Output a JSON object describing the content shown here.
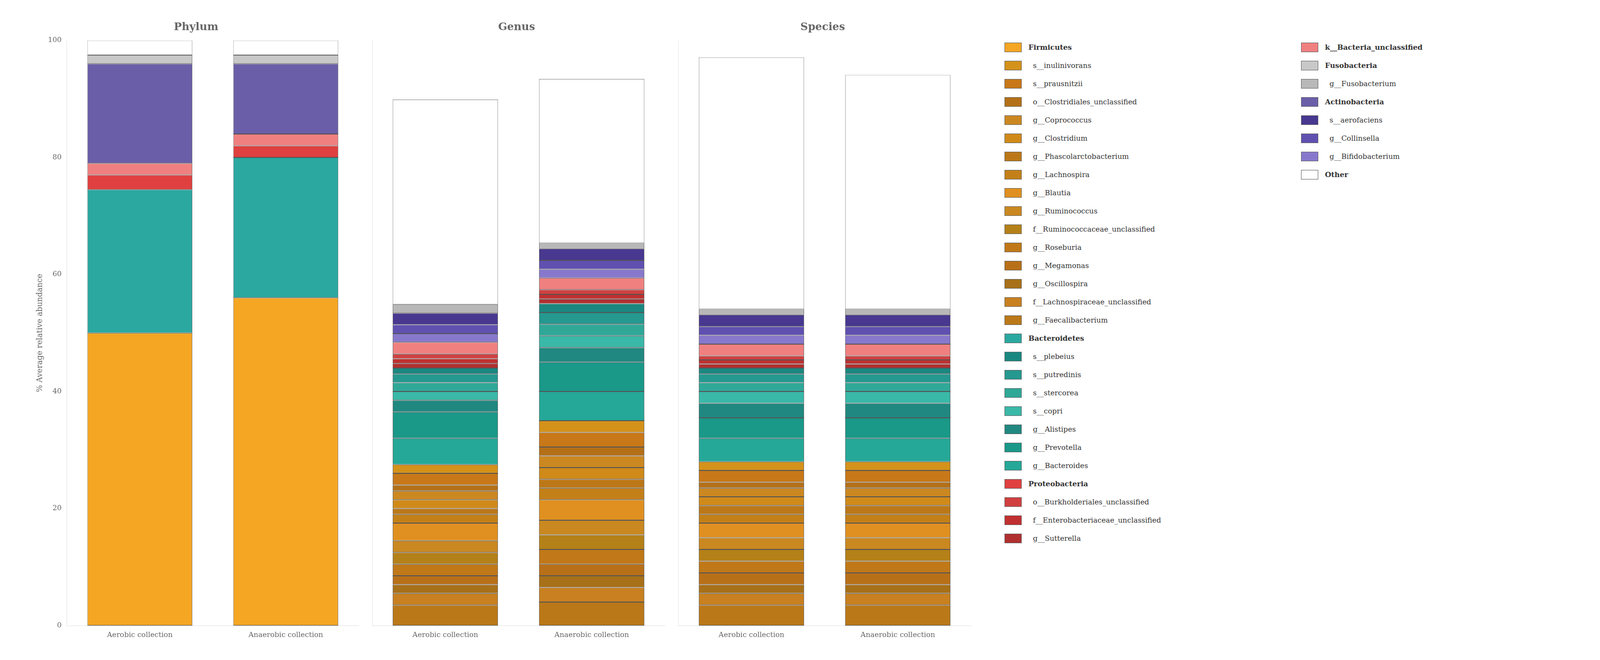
{
  "chart_data": [
    {
      "type": "bar",
      "title": "Phylum",
      "categories": [
        "Aerobic collection",
        "Anaerobic collection"
      ],
      "ylabel": "% Average relative abundance",
      "stacked": true,
      "grid": false,
      "ylim": [
        0,
        100
      ],
      "yticks": [
        0,
        20,
        40,
        60,
        80,
        100
      ],
      "series": [
        {
          "color": "#F5A623",
          "values": [
            50.0,
            56.0
          ]
        },
        {
          "color": "#2BA8A0",
          "values": [
            24.5,
            24.0
          ]
        },
        {
          "color": "#E04040",
          "values": [
            2.5,
            2.0
          ]
        },
        {
          "color": "#F08080",
          "values": [
            2.0,
            2.0
          ]
        },
        {
          "color": "#6B5EA8",
          "values": [
            17.0,
            12.0
          ]
        },
        {
          "color": "#C8C8C8",
          "values": [
            1.5,
            1.5
          ]
        },
        {
          "color": "#FFFFFF",
          "values": [
            2.5,
            2.5
          ]
        }
      ]
    },
    {
      "type": "bar",
      "title": "Genus",
      "categories": [
        "Aerobic collection",
        "Anaerobic collection"
      ],
      "stacked": true,
      "grid": false,
      "tick_labels": "x",
      "ylim": [
        0,
        100
      ],
      "series": [
        {
          "color": "#BA7818",
          "values": [
            3.5,
            4.0
          ]
        },
        {
          "color": "#C88020",
          "values": [
            2.0,
            2.5
          ]
        },
        {
          "color": "#A87018",
          "values": [
            1.5,
            2.0
          ]
        },
        {
          "color": "#B87018",
          "values": [
            1.5,
            2.0
          ]
        },
        {
          "color": "#C07818",
          "values": [
            2.0,
            2.5
          ]
        },
        {
          "color": "#B48018",
          "values": [
            2.0,
            2.5
          ]
        },
        {
          "color": "#CA8820",
          "values": [
            2.0,
            2.5
          ]
        },
        {
          "color": "#E09020",
          "values": [
            3.0,
            3.5
          ]
        },
        {
          "color": "#C48018",
          "values": [
            1.5,
            2.0
          ]
        },
        {
          "color": "#BC7818",
          "values": [
            1.0,
            1.5
          ]
        },
        {
          "color": "#D08A1A",
          "values": [
            1.5,
            2.0
          ]
        },
        {
          "color": "#CC8820",
          "values": [
            1.5,
            2.0
          ]
        },
        {
          "color": "#B47018",
          "values": [
            1.0,
            1.5
          ]
        },
        {
          "color": "#C87818",
          "values": [
            2.0,
            2.5
          ]
        },
        {
          "color": "#D4921A",
          "values": [
            1.5,
            2.0
          ]
        },
        {
          "color": "#25A898",
          "values": [
            4.5,
            5.0
          ]
        },
        {
          "color": "#1A9888",
          "values": [
            4.5,
            5.0
          ]
        },
        {
          "color": "#208880",
          "values": [
            2.0,
            2.5
          ]
        },
        {
          "color": "#3AB8A8",
          "values": [
            1.5,
            2.0
          ]
        },
        {
          "color": "#30A898",
          "values": [
            1.5,
            2.0
          ]
        },
        {
          "color": "#259890",
          "values": [
            1.5,
            2.0
          ]
        },
        {
          "color": "#1A8880",
          "values": [
            1.0,
            1.5
          ]
        },
        {
          "color": "#B03030",
          "values": [
            0.8,
            0.8
          ]
        },
        {
          "color": "#C03030",
          "values": [
            0.8,
            0.8
          ]
        },
        {
          "color": "#D04040",
          "values": [
            0.8,
            0.8
          ]
        },
        {
          "color": "#F08080",
          "values": [
            2.0,
            2.0
          ]
        },
        {
          "color": "#8878CC",
          "values": [
            1.5,
            1.5
          ]
        },
        {
          "color": "#6050B0",
          "values": [
            1.5,
            1.5
          ]
        },
        {
          "color": "#483890",
          "values": [
            2.0,
            2.0
          ]
        },
        {
          "color": "#B8B8B8",
          "values": [
            1.5,
            1.0
          ]
        },
        {
          "color": "#FFFFFF",
          "values": [
            35.0,
            28.0
          ]
        }
      ]
    },
    {
      "type": "bar",
      "title": "Species",
      "categories": [
        "Aerobic collection",
        "Anaerobic collection"
      ],
      "stacked": true,
      "grid": false,
      "tick_labels": "x",
      "ylim": [
        0,
        100
      ],
      "legend": "right",
      "series": [
        {
          "color": "#BA7818",
          "values": [
            3.5,
            3.5
          ]
        },
        {
          "color": "#C88020",
          "values": [
            2.0,
            2.0
          ]
        },
        {
          "color": "#A87018",
          "values": [
            1.5,
            1.5
          ]
        },
        {
          "color": "#B87018",
          "values": [
            2.0,
            2.0
          ]
        },
        {
          "color": "#C07818",
          "values": [
            2.0,
            2.0
          ]
        },
        {
          "color": "#B48018",
          "values": [
            2.0,
            2.0
          ]
        },
        {
          "color": "#CA8820",
          "values": [
            2.0,
            2.0
          ]
        },
        {
          "color": "#E09020",
          "values": [
            2.5,
            2.5
          ]
        },
        {
          "color": "#C48018",
          "values": [
            1.5,
            1.5
          ]
        },
        {
          "color": "#BC7818",
          "values": [
            1.5,
            1.5
          ]
        },
        {
          "color": "#D08A1A",
          "values": [
            1.5,
            1.5
          ]
        },
        {
          "color": "#CC8820",
          "values": [
            1.5,
            1.5
          ]
        },
        {
          "color": "#B47018",
          "values": [
            1.0,
            1.0
          ]
        },
        {
          "color": "#C87818",
          "values": [
            2.0,
            2.0
          ]
        },
        {
          "color": "#D4921A",
          "values": [
            1.5,
            1.5
          ]
        },
        {
          "color": "#25A898",
          "values": [
            4.0,
            4.0
          ]
        },
        {
          "color": "#1A9888",
          "values": [
            3.5,
            3.5
          ]
        },
        {
          "color": "#208880",
          "values": [
            2.5,
            2.5
          ]
        },
        {
          "color": "#3AB8A8",
          "values": [
            2.0,
            2.0
          ]
        },
        {
          "color": "#30A898",
          "values": [
            1.5,
            1.5
          ]
        },
        {
          "color": "#259890",
          "values": [
            1.5,
            1.5
          ]
        },
        {
          "color": "#1A8880",
          "values": [
            1.0,
            1.0
          ]
        },
        {
          "color": "#B03030",
          "values": [
            0.7,
            0.7
          ]
        },
        {
          "color": "#C03030",
          "values": [
            0.7,
            0.7
          ]
        },
        {
          "color": "#D04040",
          "values": [
            0.7,
            0.7
          ]
        },
        {
          "color": "#F08080",
          "values": [
            2.0,
            2.0
          ]
        },
        {
          "color": "#8878CC",
          "values": [
            1.5,
            1.5
          ]
        },
        {
          "color": "#6050B0",
          "values": [
            1.5,
            1.5
          ]
        },
        {
          "color": "#483890",
          "values": [
            2.0,
            2.0
          ]
        },
        {
          "color": "#B8B8B8",
          "values": [
            1.0,
            1.0
          ]
        },
        {
          "color": "#FFFFFF",
          "values": [
            43.0,
            40.0
          ]
        }
      ],
      "annotations": [
        [
          {
            "text": "Firmicutes",
            "color": "#F5A623"
          },
          {
            "text": "  s__inulinivorans",
            "color": "#D4921A"
          },
          {
            "text": "  s__prausnitzii",
            "color": "#C87818"
          },
          {
            "text": "  o__Clostridiales_unclassified",
            "color": "#B47018"
          },
          {
            "text": "  g__Coprococcus",
            "color": "#CC8820"
          },
          {
            "text": "  g__Clostridium",
            "color": "#D08A1A"
          },
          {
            "text": "  g__Phascolarctobacterium",
            "color": "#BC7818"
          },
          {
            "text": "  g__Lachnospira",
            "color": "#C48018"
          },
          {
            "text": "  g__Blautia",
            "color": "#E09020"
          },
          {
            "text": "  g__Ruminococcus",
            "color": "#CA8820"
          },
          {
            "text": "  f__Ruminococcaceae_unclassified",
            "color": "#B48018"
          },
          {
            "text": "  g__Roseburia",
            "color": "#C07818"
          },
          {
            "text": "  g__Megamonas",
            "color": "#B87018"
          },
          {
            "text": "  g__Oscillospira",
            "color": "#A87018"
          },
          {
            "text": "  f__Lachnospiraceae_unclassified",
            "color": "#C88020"
          },
          {
            "text": "  g__Faecalibacterium",
            "color": "#BA7818"
          },
          {
            "text": "Bacteroidetes",
            "color": "#2BA8A0"
          },
          {
            "text": "  s__plebeius",
            "color": "#1A8880"
          },
          {
            "text": "  s__putredinis",
            "color": "#259890"
          },
          {
            "text": "  s__stercorea",
            "color": "#30A898"
          },
          {
            "text": "  s__copri",
            "color": "#3AB8A8"
          },
          {
            "text": "  g__Alistipes",
            "color": "#208880"
          },
          {
            "text": "  g__Prevotella",
            "color": "#1A9888"
          },
          {
            "text": "  g__Bacteroides",
            "color": "#25A898"
          },
          {
            "text": "Proteobacteria",
            "color": "#E04040"
          },
          {
            "text": "  o__Burkholderiales_unclassified",
            "color": "#D04040"
          },
          {
            "text": "  f__Enterobacteriaceae_unclassified",
            "color": "#C03030"
          },
          {
            "text": "  g__Sutterella",
            "color": "#B03030"
          }
        ],
        [
          {
            "text": "k__Bacteria_unclassified",
            "color": "#F08080"
          },
          {
            "text": "Fusobacteria",
            "color": "#C8C8C8"
          },
          {
            "text": "  g__Fusobacterium",
            "color": "#B8B8B8"
          },
          {
            "text": "Actinobacteria",
            "color": "#6B5EA8"
          },
          {
            "text": "  s__aerofaciens",
            "color": "#483890"
          },
          {
            "text": "  g__Collinsella",
            "color": "#6050B0"
          },
          {
            "text": "  g__Bifidobacterium",
            "color": "#8878CC"
          },
          {
            "text": "Other",
            "color": "#FFFFFF"
          }
        ]
      ]
    }
  ]
}
